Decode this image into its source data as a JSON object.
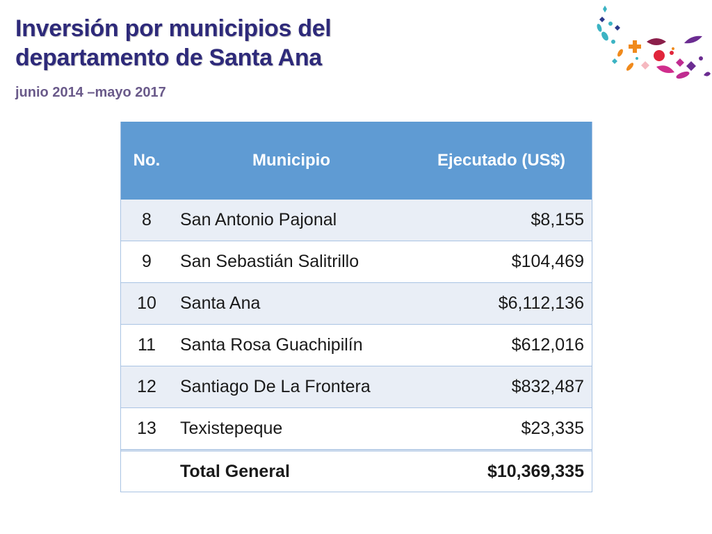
{
  "header": {
    "title_line1": "Inversión por municipios del",
    "title_line2": "departamento de Santa Ana",
    "subtitle": "junio 2014 –mayo 2017"
  },
  "table": {
    "headers": {
      "no": "No.",
      "municipio": "Municipio",
      "ejecutado": "Ejecutado (US$)"
    },
    "rows": [
      {
        "no": "8",
        "municipio": "San Antonio Pajonal",
        "ejecutado": "$8,155"
      },
      {
        "no": "9",
        "municipio": "San Sebastián Salitrillo",
        "ejecutado": "$104,469"
      },
      {
        "no": "10",
        "municipio": "Santa Ana",
        "ejecutado": "$6,112,136"
      },
      {
        "no": "11",
        "municipio": "Santa Rosa Guachipilín",
        "ejecutado": "$612,016"
      },
      {
        "no": "12",
        "municipio": "Santiago De La Frontera",
        "ejecutado": "$832,487"
      },
      {
        "no": "13",
        "municipio": "Texistepeque",
        "ejecutado": "$23,335"
      }
    ],
    "total": {
      "label": "Total General",
      "value": "$10,369,335"
    }
  },
  "colors": {
    "title": "#2e2a7a",
    "subtitle": "#6a5a8a",
    "header_bg": "#5f9bd3",
    "row_alt_bg": "#e9eef6"
  },
  "decor": {
    "icon": "confetti-logo"
  }
}
